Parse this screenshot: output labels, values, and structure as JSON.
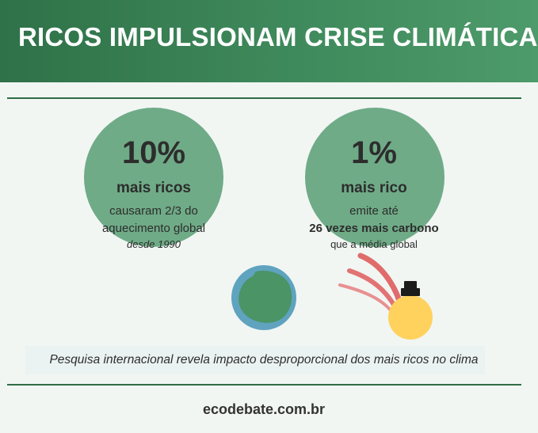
{
  "header": {
    "title": "RICOS IMPULSIONAM CRISE CLIMÁTICA"
  },
  "stats": [
    {
      "value": "10%",
      "label": "mais ricos",
      "line1": "causaram 2/3 do",
      "line2": "aquecimento global",
      "note": "desde 1990"
    },
    {
      "value": "1%",
      "label": "mais rico",
      "line1": "emite até",
      "line2": "26 vezes mais carbono",
      "note": "que a média global"
    }
  ],
  "caption": "Pesquisa internacional revela impacto desproporcional dos mais ricos no clima",
  "footer": {
    "site": "ecodebate.com.br"
  },
  "colors": {
    "header_green": "#2f7148",
    "circle_green": "#6fab87",
    "globe_ocean": "#5fa3bf",
    "globe_land": "#4a9466",
    "sun_yellow": "#ffd25e",
    "emission_red": "#e06b6b"
  },
  "icons": [
    "globe-icon",
    "bulb-emission-icon"
  ]
}
